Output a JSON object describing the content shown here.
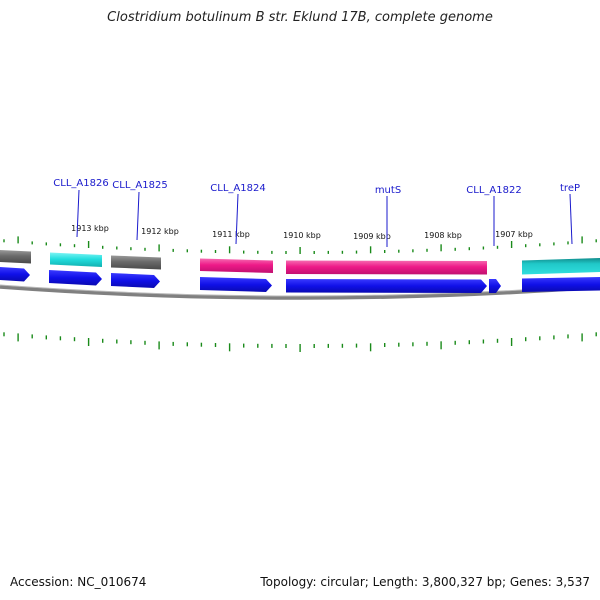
{
  "header": {
    "title": "Clostridium botulinum B str. Eklund 17B, complete genome"
  },
  "footer": {
    "accession": "Accession: NC_010674",
    "summary": "Topology: circular; Length: 3,800,327 bp; Genes: 3,537"
  },
  "colors": {
    "cds": "#1010e8",
    "feature_gray": "#6a6a6a",
    "feature_cyan": "#22dede",
    "feature_magenta": "#ee1a88",
    "feature_teal": "#20c8c8",
    "backbone": "#808080",
    "tick": "#1a8a1a",
    "label": "#1a1acc"
  },
  "scale_labels": [
    "1913 kbp",
    "1912 kbp",
    "1911 kbp",
    "1910 kbp",
    "1909 kbp",
    "1908 kbp",
    "1907 kbp"
  ],
  "genes": [
    "CLL_A1826",
    "CLL_A1825",
    "CLL_A1824",
    "mutS",
    "CLL_A1822",
    "treP"
  ]
}
